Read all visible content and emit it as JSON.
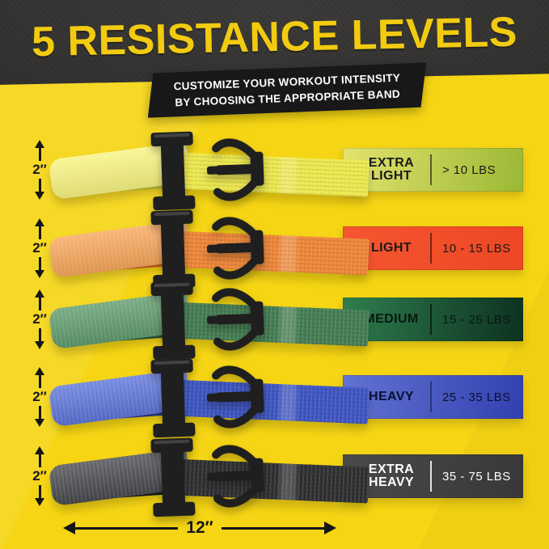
{
  "header": {
    "title": "5 RESISTANCE LEVELS",
    "subtitle_line1": "CUSTOMIZE YOUR WORKOUT INTENSITY",
    "subtitle_line2": "BY CHOOSING THE APPROPRIATE BAND"
  },
  "measurements": {
    "band_width_label": "2″",
    "band_length_label": "12″"
  },
  "bands": [
    {
      "level": "EXTRA\nLIGHT",
      "range": "> 10 LBS",
      "band_color": "#EDE94E",
      "band_light": "#F8F47E",
      "band_dark": "#C9C437",
      "strip_gradient_from": "#E3E36C",
      "strip_gradient_to": "#9BB835",
      "text_color": "#1A1A1A",
      "divider_color": "rgba(0,0,0,0.55)"
    },
    {
      "level": "LIGHT",
      "range": "10 - 15 LBS",
      "band_color": "#EF8637",
      "band_light": "#F8A558",
      "band_dark": "#D4691E",
      "strip_gradient_from": "#F4562F",
      "strip_gradient_to": "#EE4726",
      "text_color": "#1A1A1A",
      "divider_color": "rgba(0,0,0,0.5)"
    },
    {
      "level": "MEDIUM",
      "range": "15 - 25 LBS",
      "band_color": "#447D52",
      "band_light": "#5E9A6C",
      "band_dark": "#2E5B3B",
      "strip_gradient_from": "#2F7E4E",
      "strip_gradient_to": "#0D3120",
      "text_color": "#081911",
      "divider_color": "rgba(0,0,0,0.55)"
    },
    {
      "level": "HEAVY",
      "range": "25 - 35 LBS",
      "band_color": "#3D55C2",
      "band_light": "#5B73D8",
      "band_dark": "#2A3B94",
      "strip_gradient_from": "#6273D2",
      "strip_gradient_to": "#3240B0",
      "text_color": "#0A102E",
      "divider_color": "rgba(10,16,46,0.5)"
    },
    {
      "level": "EXTRA\nHEAVY",
      "range": "35 - 75 LBS",
      "band_color": "#2E2F31",
      "band_light": "#47494C",
      "band_dark": "#1B1C1E",
      "strip_gradient_from": "#4A4A4A",
      "strip_gradient_to": "#383838",
      "text_color": "#FFFFFF",
      "divider_color": "rgba(255,255,255,0.85)"
    }
  ],
  "colors": {
    "background_yellow": "#F5D514",
    "header_dark": "#2D2C2A",
    "title_yellow": "#F2CB11",
    "banner_dark": "#181818",
    "banner_text": "#FFFFFF",
    "marker_black": "#161616"
  }
}
